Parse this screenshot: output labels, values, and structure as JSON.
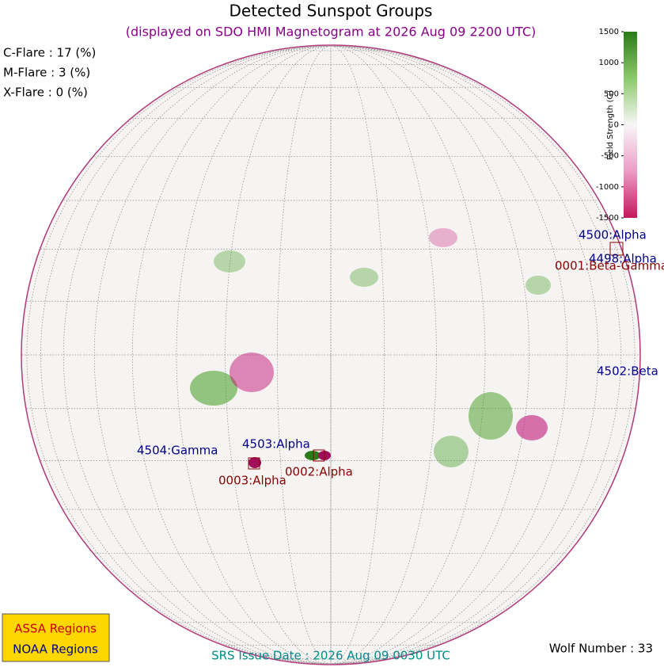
{
  "header": {
    "title": "Detected Sunspot Groups",
    "subtitle": "(displayed on SDO HMI Magnetogram at 2026 Aug 09 2200 UTC)"
  },
  "flare_probabilities": [
    "C-Flare : 17 (%)",
    "M-Flare :  3 (%)",
    "X-Flare :  0 (%)"
  ],
  "colorbar": {
    "label": "Field Strength (G)",
    "range": [
      -1500,
      1500
    ],
    "ticks": [
      1500,
      1000,
      500,
      0,
      -500,
      -1000,
      -1500
    ]
  },
  "regions": {
    "noaa": [
      "4500:Alpha",
      "4498:Alpha",
      "4502:Beta",
      "4504:Gamma",
      "4503:Alpha"
    ],
    "assa": [
      "0001:Beta-Gamma",
      "0003:Alpha",
      "0002:Alpha"
    ]
  },
  "legend": [
    "ASSA Regions",
    "NOAA Regions"
  ],
  "footer": {
    "srs_issue_date": "SRS Issue Date : 2026 Aug 09 0030 UTC",
    "wolf_number": "Wolf Number : 33"
  }
}
